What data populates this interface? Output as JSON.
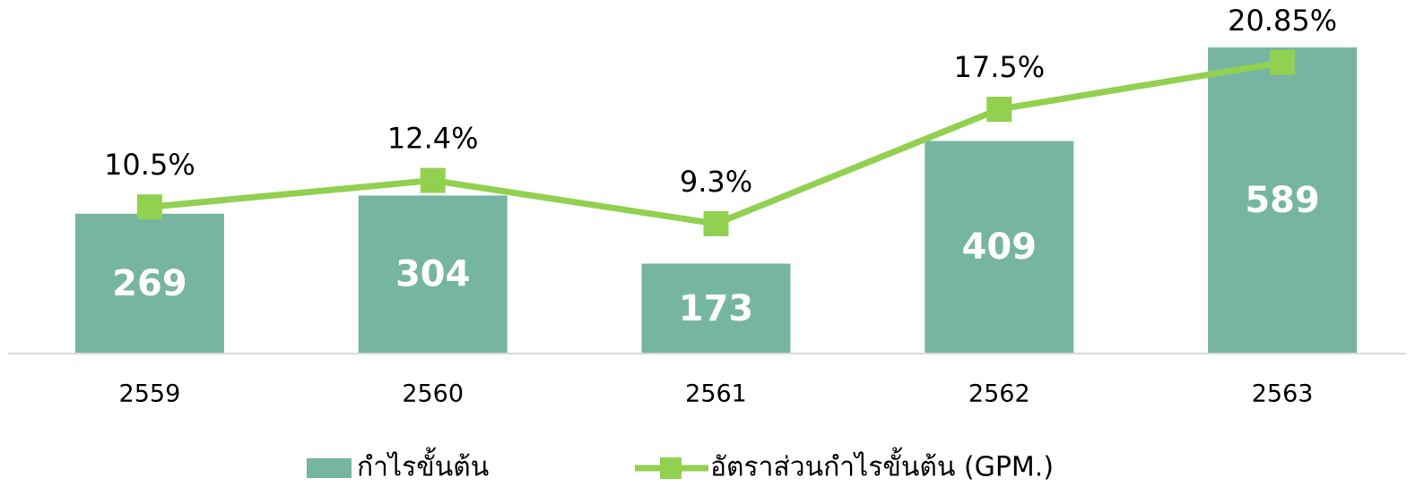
{
  "chart_data": {
    "type": "combo",
    "categories": [
      "2559",
      "2560",
      "2561",
      "2562",
      "2563"
    ],
    "series": [
      {
        "name": "กำไรขั้นต้น",
        "type": "bar",
        "color": "#76b5a2",
        "values": [
          269,
          304,
          173,
          409,
          589
        ]
      },
      {
        "name": "อัตราส่วนกำไรขั้นต้น (GPM.)",
        "type": "line",
        "axis": "y2",
        "color": "#92d050",
        "values": [
          10.5,
          12.4,
          9.3,
          17.5,
          20.85
        ],
        "value_labels": [
          "10.5%",
          "12.4%",
          "9.3%",
          "17.5%",
          "20.85%"
        ]
      }
    ],
    "ylim": [
      0,
      650
    ],
    "y2lim": [
      0,
      24.2
    ],
    "legend": "bottom"
  }
}
